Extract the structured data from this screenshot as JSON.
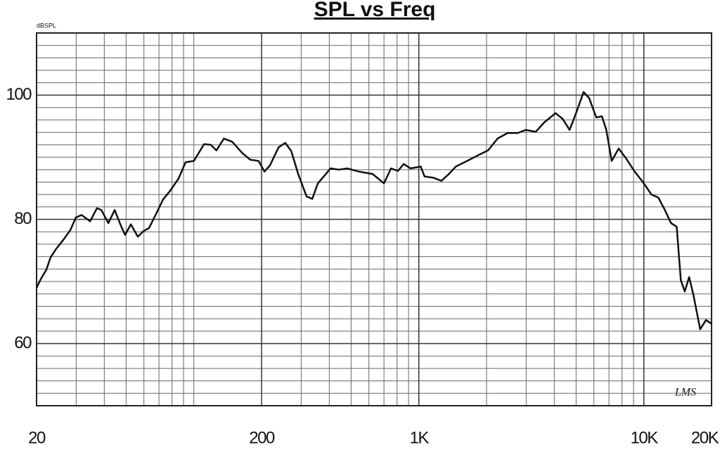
{
  "chart_data": {
    "type": "line",
    "title": "SPL vs Freq",
    "y_label": "dBSPL",
    "annotation": "LMS",
    "log_x": true,
    "grid": true,
    "minor_grid": true,
    "color": "#111111",
    "xlim": [
      20,
      20000
    ],
    "ylim": [
      50,
      110
    ],
    "xticks": [
      20,
      200,
      {
        "value": 1000,
        "label": "1K"
      },
      {
        "value": 10000,
        "label": "10K"
      },
      {
        "value": 20000,
        "label": "20K"
      }
    ],
    "yticks": [
      60,
      80,
      100
    ],
    "x": [
      20,
      20.9,
      22.1,
      23.1,
      24.5,
      26.3,
      28.3,
      29.9,
      31.7,
      34.6,
      37.1,
      38.8,
      41.7,
      44.5,
      47.4,
      49.5,
      52.5,
      56.4,
      59.7,
      63.2,
      68.0,
      73.0,
      78.5,
      85.6,
      91.9,
      100,
      111,
      119,
      126,
      136,
      148,
      164,
      178,
      194,
      206,
      218,
      238,
      255,
      271,
      291,
      317,
      336,
      356,
      382,
      405,
      441,
      481,
      540,
      623,
      700,
      752,
      808,
      856,
      919,
      1020,
      1060,
      1160,
      1260,
      1360,
      1460,
      1640,
      1830,
      2030,
      2240,
      2480,
      2750,
      2990,
      3310,
      3610,
      4050,
      4350,
      4680,
      5020,
      5400,
      5720,
      6150,
      6510,
      6800,
      7200,
      7730,
      8310,
      9060,
      10000,
      10800,
      11600,
      12400,
      13200,
      14000,
      14600,
      15200,
      15900,
      16600,
      17800,
      18900,
      20000
    ],
    "values": [
      69.0,
      70.4,
      71.9,
      73.9,
      75.3,
      76.7,
      78.3,
      80.3,
      80.7,
      79.7,
      81.8,
      81.5,
      79.4,
      81.5,
      79.0,
      77.5,
      79.2,
      77.2,
      78.1,
      78.6,
      80.9,
      83.2,
      84.6,
      86.6,
      89.2,
      89.4,
      92.1,
      92.0,
      91.1,
      93.0,
      92.5,
      90.7,
      89.6,
      89.4,
      87.7,
      88.7,
      91.6,
      92.3,
      91.0,
      87.3,
      83.7,
      83.3,
      85.8,
      87.1,
      88.2,
      88.0,
      88.2,
      87.7,
      87.3,
      85.8,
      88.2,
      87.8,
      88.9,
      88.2,
      88.5,
      86.9,
      86.7,
      86.2,
      87.3,
      88.5,
      89.4,
      90.3,
      91.1,
      93.0,
      93.9,
      93.9,
      94.4,
      94.1,
      95.6,
      97.1,
      96.2,
      94.4,
      97.3,
      100.5,
      99.5,
      96.4,
      96.6,
      94.5,
      89.4,
      91.4,
      89.9,
      87.8,
      85.8,
      84.0,
      83.5,
      81.5,
      79.4,
      78.8,
      70.2,
      68.4,
      70.7,
      67.9,
      62.3,
      63.8,
      63.2
    ]
  }
}
